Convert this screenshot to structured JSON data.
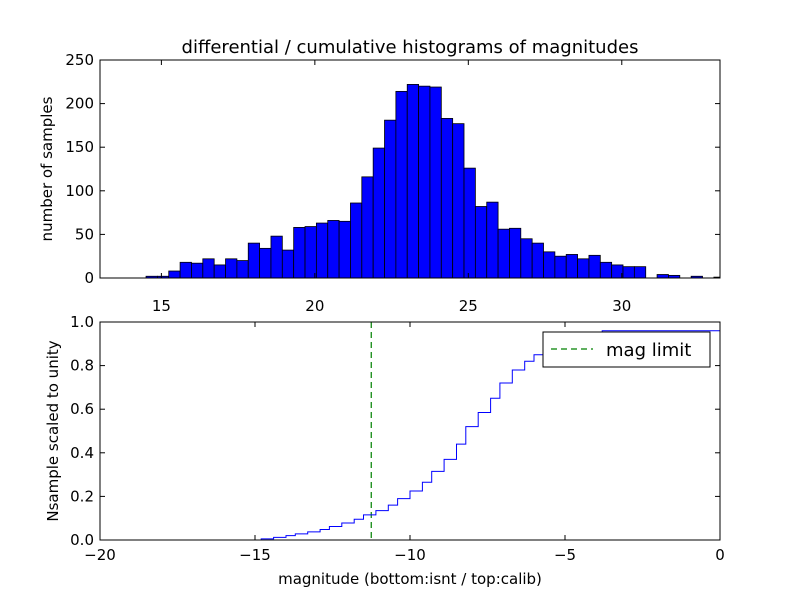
{
  "chart_data": [
    {
      "type": "bar",
      "title": "differential / cumulative histograms of magnitudes",
      "xlabel": "",
      "ylabel": "number of samples",
      "xlim": [
        13.0,
        33.2
      ],
      "ylim": [
        0,
        250
      ],
      "xticks": [
        15,
        20,
        25,
        30
      ],
      "yticks": [
        0,
        50,
        100,
        150,
        200,
        250
      ],
      "bin_start": 14.5,
      "bin_width": 0.37,
      "values": [
        2,
        2,
        8,
        18,
        17,
        22,
        15,
        22,
        20,
        40,
        34,
        48,
        32,
        58,
        59,
        63,
        66,
        65,
        86,
        116,
        149,
        181,
        214,
        222,
        220,
        219,
        183,
        177,
        126,
        82,
        87,
        56,
        57,
        45,
        40,
        30,
        25,
        27,
        22,
        26,
        18,
        15,
        13,
        13,
        0,
        4,
        3,
        0,
        2,
        0,
        1,
        2
      ],
      "bar_color": "#0000ff"
    },
    {
      "type": "line",
      "title": "",
      "xlabel": "magnitude (bottom:isnt / top:calib)",
      "ylabel": "Nsample scaled to unity",
      "xlim": [
        -20,
        0
      ],
      "ylim": [
        0.0,
        1.0
      ],
      "xticks": [
        -20,
        -15,
        -10,
        -5,
        0
      ],
      "xtick_labels": [
        "−20",
        "−15",
        "−10",
        "−5",
        "0"
      ],
      "yticks": [
        0.0,
        0.2,
        0.4,
        0.6,
        0.8,
        1.0
      ],
      "ytick_labels": [
        "0.0",
        "0.2",
        "0.4",
        "0.6",
        "0.8",
        "1.0"
      ],
      "step": 0.37,
      "x": [
        -18.5,
        -14.8,
        -14.4,
        -14.0,
        -13.7,
        -13.3,
        -12.9,
        -12.6,
        -12.2,
        -11.8,
        -11.5,
        -11.1,
        -10.7,
        -10.4,
        -10.0,
        -9.6,
        -9.3,
        -8.9,
        -8.5,
        -8.2,
        -7.8,
        -7.4,
        -7.1,
        -6.7,
        -6.3,
        -6.0,
        -5.6,
        -5.2,
        -4.9,
        -4.5,
        -4.1,
        -3.8,
        0.0
      ],
      "y": [
        0.0,
        0.005,
        0.012,
        0.02,
        0.028,
        0.037,
        0.048,
        0.062,
        0.078,
        0.095,
        0.115,
        0.135,
        0.16,
        0.19,
        0.225,
        0.265,
        0.315,
        0.37,
        0.44,
        0.52,
        0.585,
        0.65,
        0.72,
        0.78,
        0.82,
        0.85,
        0.87,
        0.89,
        0.91,
        0.93,
        0.945,
        0.96,
        1.0
      ],
      "line_color": "#0000ff",
      "mag_limit": -11.25,
      "mag_limit_color": "#008000",
      "legend": {
        "label": "mag limit",
        "position": "upper right"
      }
    }
  ]
}
